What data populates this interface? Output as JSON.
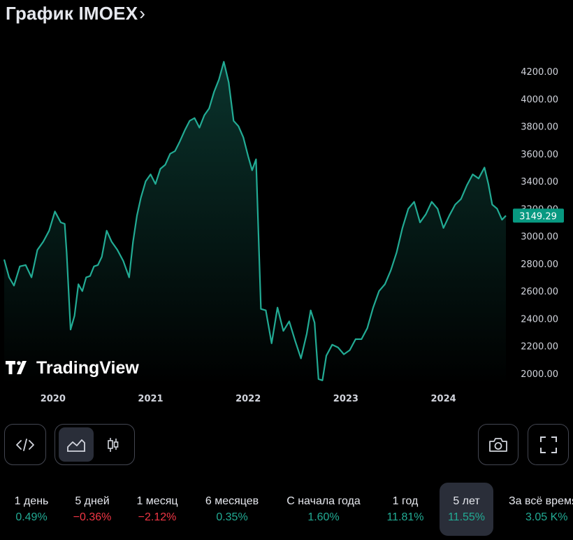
{
  "header": {
    "title": "График IMOEX",
    "chevron": "›"
  },
  "colors": {
    "background": "#000000",
    "line": "#22ab94",
    "price_tag": "#089981",
    "positive": "#22ab94",
    "negative": "#f23645",
    "text": "#d1d4dc",
    "button_border": "#434651",
    "active_bg": "#2a2e39"
  },
  "chart_data": {
    "type": "area",
    "title": "График IMOEX",
    "x_ticks": [
      "2020",
      "2021",
      "2022",
      "2023",
      "2024"
    ],
    "y_ticks": [
      "4200.00",
      "4000.00",
      "3800.00",
      "3600.00",
      "3400.00",
      "3200.00",
      "3000.00",
      "2800.00",
      "2600.00",
      "2400.00",
      "2200.00",
      "2000.00"
    ],
    "ylim": [
      1940,
      4260
    ],
    "last_price_label": "3149.29",
    "last_price": 3149.29,
    "series": [
      {
        "name": "IMOEX",
        "points": [
          [
            2019.5,
            2830
          ],
          [
            2019.55,
            2700
          ],
          [
            2019.6,
            2640
          ],
          [
            2019.66,
            2780
          ],
          [
            2019.72,
            2790
          ],
          [
            2019.78,
            2700
          ],
          [
            2019.84,
            2900
          ],
          [
            2019.9,
            2960
          ],
          [
            2019.96,
            3040
          ],
          [
            2020.02,
            3180
          ],
          [
            2020.08,
            3100
          ],
          [
            2020.12,
            3090
          ],
          [
            2020.14,
            2880
          ],
          [
            2020.18,
            2320
          ],
          [
            2020.22,
            2420
          ],
          [
            2020.26,
            2650
          ],
          [
            2020.3,
            2600
          ],
          [
            2020.34,
            2700
          ],
          [
            2020.38,
            2710
          ],
          [
            2020.42,
            2780
          ],
          [
            2020.46,
            2790
          ],
          [
            2020.5,
            2850
          ],
          [
            2020.55,
            3040
          ],
          [
            2020.6,
            2960
          ],
          [
            2020.66,
            2900
          ],
          [
            2020.72,
            2820
          ],
          [
            2020.78,
            2700
          ],
          [
            2020.82,
            2960
          ],
          [
            2020.86,
            3150
          ],
          [
            2020.9,
            3280
          ],
          [
            2020.95,
            3400
          ],
          [
            2021.0,
            3450
          ],
          [
            2021.05,
            3380
          ],
          [
            2021.1,
            3490
          ],
          [
            2021.15,
            3520
          ],
          [
            2021.2,
            3600
          ],
          [
            2021.25,
            3620
          ],
          [
            2021.3,
            3690
          ],
          [
            2021.35,
            3770
          ],
          [
            2021.4,
            3840
          ],
          [
            2021.45,
            3860
          ],
          [
            2021.5,
            3790
          ],
          [
            2021.55,
            3880
          ],
          [
            2021.6,
            3930
          ],
          [
            2021.65,
            4050
          ],
          [
            2021.7,
            4140
          ],
          [
            2021.75,
            4270
          ],
          [
            2021.8,
            4120
          ],
          [
            2021.85,
            3840
          ],
          [
            2021.9,
            3800
          ],
          [
            2021.95,
            3720
          ],
          [
            2022.0,
            3580
          ],
          [
            2022.04,
            3480
          ],
          [
            2022.08,
            3560
          ],
          [
            2022.13,
            2470
          ],
          [
            2022.18,
            2460
          ],
          [
            2022.24,
            2220
          ],
          [
            2022.3,
            2480
          ],
          [
            2022.36,
            2310
          ],
          [
            2022.42,
            2380
          ],
          [
            2022.48,
            2240
          ],
          [
            2022.54,
            2110
          ],
          [
            2022.6,
            2290
          ],
          [
            2022.64,
            2460
          ],
          [
            2022.68,
            2370
          ],
          [
            2022.72,
            1960
          ],
          [
            2022.76,
            1950
          ],
          [
            2022.8,
            2130
          ],
          [
            2022.86,
            2210
          ],
          [
            2022.92,
            2190
          ],
          [
            2022.98,
            2140
          ],
          [
            2023.04,
            2170
          ],
          [
            2023.1,
            2250
          ],
          [
            2023.16,
            2250
          ],
          [
            2023.22,
            2330
          ],
          [
            2023.28,
            2480
          ],
          [
            2023.34,
            2600
          ],
          [
            2023.4,
            2650
          ],
          [
            2023.46,
            2750
          ],
          [
            2023.52,
            2880
          ],
          [
            2023.58,
            3060
          ],
          [
            2023.64,
            3200
          ],
          [
            2023.7,
            3250
          ],
          [
            2023.76,
            3100
          ],
          [
            2023.82,
            3160
          ],
          [
            2023.88,
            3250
          ],
          [
            2023.94,
            3200
          ],
          [
            2024.0,
            3060
          ],
          [
            2024.06,
            3150
          ],
          [
            2024.12,
            3230
          ],
          [
            2024.18,
            3270
          ],
          [
            2024.24,
            3370
          ],
          [
            2024.3,
            3450
          ],
          [
            2024.36,
            3420
          ],
          [
            2024.42,
            3500
          ],
          [
            2024.46,
            3380
          ],
          [
            2024.5,
            3230
          ],
          [
            2024.55,
            3200
          ],
          [
            2024.6,
            3120
          ],
          [
            2024.64,
            3149.29
          ]
        ]
      }
    ]
  },
  "watermark": {
    "text": "TradingView",
    "icon": "tradingview-logo-icon"
  },
  "toolbar": {
    "embed_icon": "code-icon",
    "area_icon": "area-chart-icon",
    "candles_icon": "candlestick-icon",
    "camera_icon": "camera-icon",
    "fullscreen_icon": "fullscreen-icon"
  },
  "periods": [
    {
      "label": "1 день",
      "change": "0.49%",
      "sign": "pos"
    },
    {
      "label": "5 дней",
      "change": "−0.36%",
      "sign": "neg"
    },
    {
      "label": "1 месяц",
      "change": "−2.12%",
      "sign": "neg"
    },
    {
      "label": "6 месяцев",
      "change": "0.35%",
      "sign": "pos"
    },
    {
      "label": "С начала года",
      "change": "1.60%",
      "sign": "pos"
    },
    {
      "label": "1 год",
      "change": "11.81%",
      "sign": "pos"
    },
    {
      "label": "5 лет",
      "change": "11.55%",
      "sign": "pos"
    },
    {
      "label": "За всё время",
      "change": "3.05 K%",
      "sign": "pos"
    }
  ],
  "active_period": "5 лет"
}
